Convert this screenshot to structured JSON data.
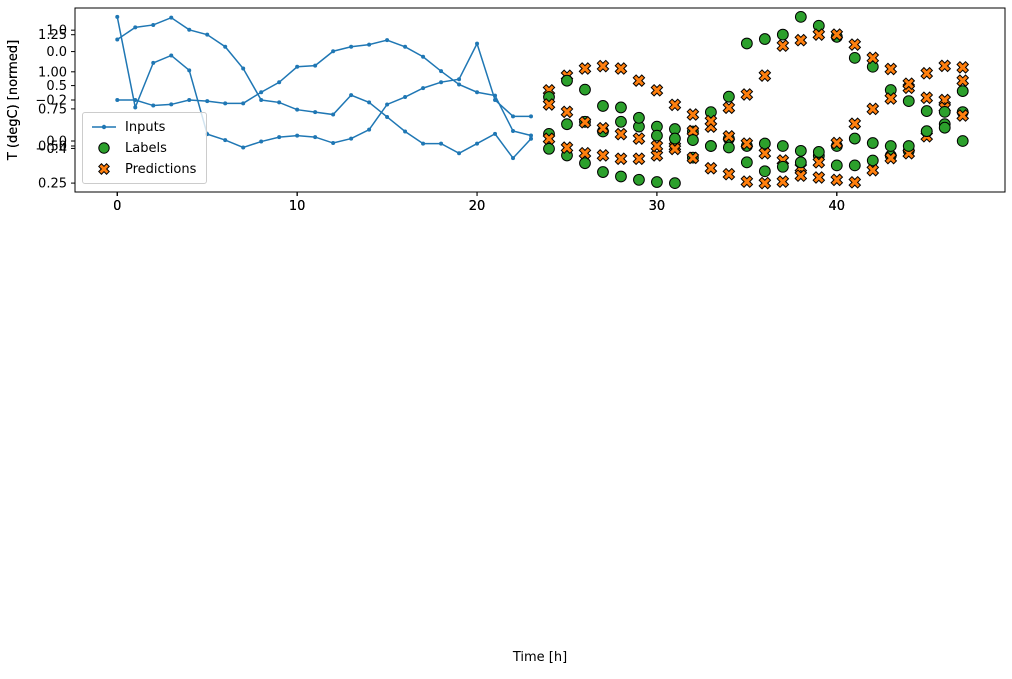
{
  "figure": {
    "background": "#ffffff",
    "xlabel": "Time [h]",
    "ylabel": "T (degC) [normed]",
    "legend": {
      "items": [
        {
          "label": "Inputs",
          "type": "line-dot",
          "color": "#1f77b4"
        },
        {
          "label": "Labels",
          "type": "circle",
          "color": "#2ca02c"
        },
        {
          "label": "Predictions",
          "type": "x-marker",
          "color": "#ff7f0e"
        }
      ]
    }
  },
  "chart_data": [
    {
      "type": "line",
      "title": "",
      "xlabel": "",
      "ylabel": "T (degC) [normed]",
      "xlim": [
        -2.35,
        49.35
      ],
      "ylim": [
        -0.58,
        0.18
      ],
      "xticks": [
        0,
        10,
        20,
        30,
        40
      ],
      "xticklabels": [
        "0",
        "10",
        "20",
        "30",
        "40"
      ],
      "yticks": [
        0.0,
        -0.2,
        -0.4
      ],
      "yticklabels": [
        "0.0",
        "−0.2",
        "−0.4"
      ],
      "grid": false,
      "legend_position": "center left",
      "series": [
        {
          "name": "Inputs",
          "marker": "line-dot",
          "color": "#1f77b4",
          "x": [
            0,
            1,
            2,
            3,
            4,
            5,
            6,
            7,
            8,
            9,
            10,
            11,
            12,
            13,
            14,
            15,
            16,
            17,
            18,
            19,
            20,
            21,
            22,
            23
          ],
          "y": [
            0.05,
            0.1,
            0.11,
            0.14,
            0.09,
            0.07,
            0.02,
            -0.07,
            -0.2,
            -0.21,
            -0.24,
            -0.25,
            -0.26,
            -0.18,
            -0.21,
            -0.27,
            -0.33,
            -0.38,
            -0.38,
            -0.42,
            -0.38,
            -0.34,
            -0.44,
            -0.36
          ]
        },
        {
          "name": "Labels",
          "marker": "circle",
          "color": "#2ca02c",
          "x": [
            24,
            25,
            26,
            27,
            28,
            29,
            30,
            31,
            32,
            33,
            34,
            35,
            36,
            37,
            38,
            39,
            40,
            41,
            42,
            43,
            44,
            45,
            46,
            47
          ],
          "y": [
            -0.34,
            -0.3,
            -0.29,
            -0.33,
            -0.29,
            -0.31,
            -0.31,
            -0.32,
            -0.33,
            -0.39,
            -0.36,
            -0.39,
            -0.38,
            -0.39,
            -0.41,
            -0.43,
            -0.47,
            -0.47,
            -0.45,
            -0.43,
            -0.41,
            -0.33,
            -0.3,
            -0.25
          ]
        },
        {
          "name": "Predictions",
          "marker": "X",
          "color": "#ff7f0e",
          "x": [
            24,
            25,
            26,
            27,
            28,
            29,
            30,
            31,
            32,
            33,
            34,
            35,
            36,
            37,
            38,
            39,
            40,
            41,
            42,
            43,
            44,
            45,
            46,
            47
          ],
          "y": [
            -0.16,
            -0.1,
            -0.07,
            -0.06,
            -0.07,
            -0.12,
            -0.16,
            -0.22,
            -0.26,
            -0.31,
            -0.35,
            -0.38,
            -0.42,
            -0.45,
            -0.48,
            -0.52,
            -0.53,
            -0.54,
            -0.49,
            -0.44,
            -0.42,
            -0.35,
            -0.2,
            -0.12
          ]
        }
      ]
    },
    {
      "type": "line",
      "title": "",
      "xlabel": "",
      "ylabel": "T (degC) [normed]",
      "xlim": [
        -2.35,
        49.35
      ],
      "ylim": [
        -0.46,
        1.2
      ],
      "xticks": [
        0,
        10,
        20,
        30,
        40
      ],
      "xticklabels": [
        "0",
        "10",
        "20",
        "30",
        "40"
      ],
      "yticks": [
        0.0,
        0.5,
        1.0
      ],
      "yticklabels": [
        "0.0",
        "0.5",
        "1.0"
      ],
      "grid": false,
      "series": [
        {
          "name": "Inputs",
          "marker": "line-dot",
          "color": "#1f77b4",
          "x": [
            0,
            1,
            2,
            3,
            4,
            5,
            6,
            7,
            8,
            9,
            10,
            11,
            12,
            13,
            14,
            15,
            16,
            17,
            18,
            19,
            20,
            21,
            22,
            23
          ],
          "y": [
            0.37,
            0.37,
            0.32,
            0.33,
            0.37,
            0.36,
            0.34,
            0.34,
            0.44,
            0.53,
            0.67,
            0.68,
            0.81,
            0.85,
            0.87,
            0.91,
            0.85,
            0.76,
            0.63,
            0.51,
            0.44,
            0.41,
            0.09,
            0.05
          ]
        },
        {
          "name": "Labels",
          "marker": "circle",
          "color": "#2ca02c",
          "x": [
            24,
            25,
            26,
            27,
            28,
            29,
            30,
            31,
            32,
            33,
            34,
            35,
            36,
            37,
            38,
            39,
            40,
            41,
            42,
            43,
            44,
            45,
            46,
            47
          ],
          "y": [
            -0.07,
            -0.13,
            -0.2,
            -0.28,
            -0.32,
            -0.35,
            -0.37,
            -0.38,
            -0.15,
            0.26,
            0.4,
            0.88,
            0.92,
            0.96,
            1.12,
            1.04,
            0.94,
            0.75,
            0.67,
            0.46,
            0.36,
            0.27,
            0.12,
            0.0
          ]
        },
        {
          "name": "Predictions",
          "marker": "X",
          "color": "#ff7f0e",
          "x": [
            24,
            25,
            26,
            27,
            28,
            29,
            30,
            31,
            32,
            33,
            34,
            35,
            36,
            37,
            38,
            39,
            40,
            41,
            42,
            43,
            44,
            45,
            46,
            47
          ],
          "y": [
            0.02,
            -0.06,
            -0.11,
            -0.13,
            -0.16,
            -0.16,
            -0.13,
            -0.05,
            0.09,
            0.18,
            0.3,
            0.42,
            0.59,
            0.86,
            0.91,
            0.96,
            0.96,
            0.87,
            0.75,
            0.65,
            0.48,
            0.39,
            0.3,
            0.23
          ]
        }
      ]
    },
    {
      "type": "line",
      "title": "",
      "xlabel": "Time [h]",
      "ylabel": "T (degC) [normed]",
      "xlim": [
        -2.35,
        49.35
      ],
      "ylim": [
        0.19,
        1.43
      ],
      "xticks": [
        0,
        10,
        20,
        30,
        40
      ],
      "xticklabels": [
        "0",
        "10",
        "20",
        "30",
        "40"
      ],
      "yticks": [
        0.25,
        0.5,
        0.75,
        1.0,
        1.25
      ],
      "yticklabels": [
        "0.25",
        "0.50",
        "0.75",
        "1.00",
        "1.25"
      ],
      "grid": false,
      "series": [
        {
          "name": "Inputs",
          "marker": "line-dot",
          "color": "#1f77b4",
          "x": [
            0,
            1,
            2,
            3,
            4,
            5,
            6,
            7,
            8,
            9,
            10,
            11,
            12,
            13,
            14,
            15,
            16,
            17,
            18,
            19,
            20,
            21,
            22,
            23
          ],
          "y": [
            1.37,
            0.76,
            1.06,
            1.11,
            1.01,
            0.58,
            0.54,
            0.49,
            0.53,
            0.56,
            0.57,
            0.56,
            0.52,
            0.55,
            0.61,
            0.78,
            0.83,
            0.89,
            0.93,
            0.95,
            1.19,
            0.81,
            0.7,
            0.7
          ]
        },
        {
          "name": "Labels",
          "marker": "circle",
          "color": "#2ca02c",
          "x": [
            24,
            25,
            26,
            27,
            28,
            29,
            30,
            31,
            32,
            33,
            34,
            35,
            36,
            37,
            38,
            39,
            40,
            41,
            42,
            43,
            44,
            45,
            46,
            47
          ],
          "y": [
            0.83,
            0.94,
            0.88,
            0.77,
            0.76,
            0.69,
            0.57,
            0.55,
            0.54,
            0.5,
            0.49,
            0.39,
            0.33,
            0.36,
            0.39,
            0.46,
            0.5,
            0.55,
            0.52,
            0.5,
            0.5,
            0.6,
            0.73,
            0.87
          ]
        },
        {
          "name": "Predictions",
          "marker": "X",
          "color": "#ff7f0e",
          "x": [
            24,
            25,
            26,
            27,
            28,
            29,
            30,
            31,
            32,
            33,
            34,
            35,
            36,
            37,
            38,
            39,
            40,
            41,
            42,
            43,
            44,
            45,
            46,
            47
          ],
          "y": [
            0.78,
            0.73,
            0.66,
            0.62,
            0.58,
            0.55,
            0.5,
            0.48,
            0.42,
            0.35,
            0.31,
            0.26,
            0.25,
            0.26,
            0.3,
            0.39,
            0.52,
            0.65,
            0.75,
            0.82,
            0.92,
            0.99,
            1.04,
            1.03
          ]
        }
      ]
    }
  ]
}
